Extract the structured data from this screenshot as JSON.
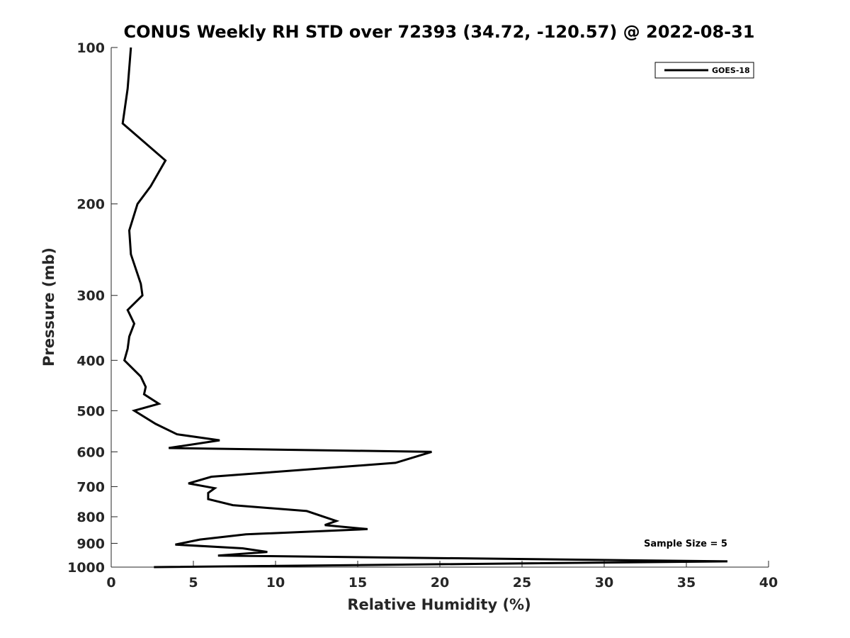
{
  "chart_data": {
    "type": "line",
    "title": "CONUS Weekly RH STD over 72393 (34.72, -120.57) @ 2022-08-31",
    "xlabel": "Relative Humidity (%)",
    "ylabel": "Pressure (mb)",
    "xlim": [
      0,
      40
    ],
    "ylim": [
      100,
      1000
    ],
    "y_scale": "log",
    "y_reversed": true,
    "x_ticks": [
      "0",
      "5",
      "10",
      "15",
      "20",
      "25",
      "30",
      "35",
      "40"
    ],
    "y_ticks": [
      "100",
      "200",
      "300",
      "400",
      "500",
      "600",
      "700",
      "800",
      "900",
      "1000"
    ],
    "grid": false,
    "legend_position": "top-right",
    "annotation": "Sample Size = 5",
    "series": [
      {
        "name": "GOES-18",
        "color": "#000000",
        "points": [
          [
            1.2,
            100
          ],
          [
            1.0,
            120
          ],
          [
            0.7,
            140
          ],
          [
            3.3,
            165
          ],
          [
            2.4,
            185
          ],
          [
            1.6,
            200
          ],
          [
            1.1,
            225
          ],
          [
            1.2,
            250
          ],
          [
            1.8,
            285
          ],
          [
            1.9,
            300
          ],
          [
            1.0,
            320
          ],
          [
            1.4,
            340
          ],
          [
            1.1,
            360
          ],
          [
            1.0,
            380
          ],
          [
            0.8,
            400
          ],
          [
            1.8,
            430
          ],
          [
            2.1,
            450
          ],
          [
            2.0,
            465
          ],
          [
            2.9,
            485
          ],
          [
            1.4,
            500
          ],
          [
            2.7,
            530
          ],
          [
            4.0,
            555
          ],
          [
            6.6,
            570
          ],
          [
            3.5,
            590
          ],
          [
            19.5,
            600
          ],
          [
            17.3,
            630
          ],
          [
            6.1,
            670
          ],
          [
            4.7,
            690
          ],
          [
            6.3,
            705
          ],
          [
            5.9,
            720
          ],
          [
            5.9,
            740
          ],
          [
            7.4,
            760
          ],
          [
            11.9,
            780
          ],
          [
            13.7,
            815
          ],
          [
            13.0,
            830
          ],
          [
            15.6,
            845
          ],
          [
            8.2,
            865
          ],
          [
            5.4,
            885
          ],
          [
            3.9,
            905
          ],
          [
            8.0,
            920
          ],
          [
            9.5,
            935
          ],
          [
            6.5,
            950
          ],
          [
            37.5,
            975
          ],
          [
            2.6,
            1000
          ]
        ]
      }
    ]
  }
}
